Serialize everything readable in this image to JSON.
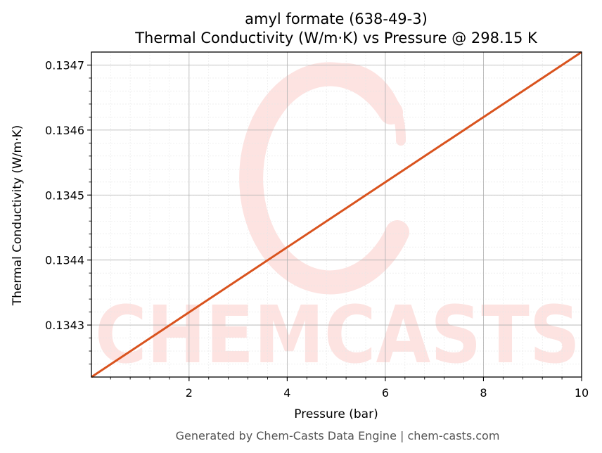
{
  "chart_data": {
    "type": "line",
    "title": "amyl formate (638-49-3)",
    "subtitle": "Thermal Conductivity (W/m·K) vs Pressure @ 298.15 K",
    "xlabel": "Pressure (bar)",
    "ylabel": "Thermal Conductivity (W/m·K)",
    "xlim": [
      0.01,
      10
    ],
    "ylim": [
      0.13422,
      0.13472
    ],
    "x_ticks": [
      2,
      4,
      6,
      8,
      10
    ],
    "x_tick_labels": [
      "2",
      "4",
      "6",
      "8",
      "10"
    ],
    "y_ticks": [
      0.1343,
      0.1344,
      0.1345,
      0.1346,
      0.1347
    ],
    "y_tick_labels": [
      "0.1343",
      "0.1344",
      "0.1345",
      "0.1346",
      "0.1347"
    ],
    "grid": true,
    "series": [
      {
        "x": [
          0.01,
          10
        ],
        "y": [
          0.13422,
          0.13472
        ],
        "color": "#d9531e"
      }
    ]
  },
  "watermark": {
    "text": "CHEMCASTS",
    "color": "#fde3e1"
  },
  "footer": "Generated by Chem-Casts Data Engine | chem-casts.com"
}
